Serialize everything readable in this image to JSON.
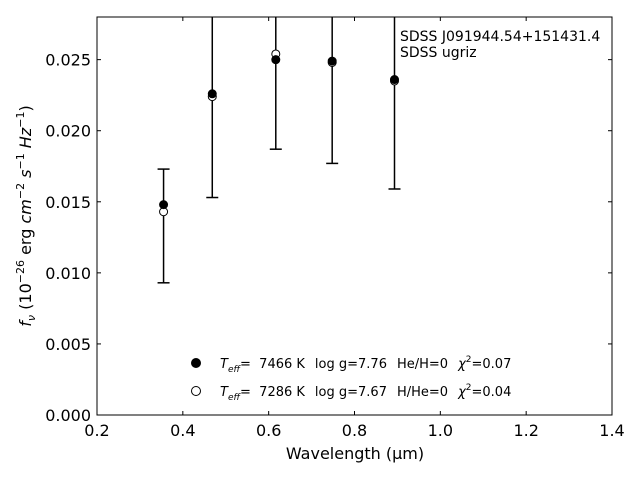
{
  "chart_data": {
    "type": "scatter",
    "xlabel": "Wavelength (μm)",
    "ylabel_parts": {
      "f": "f",
      "nu": "ν",
      "open": " (10",
      "exp1": "−26",
      "erg": " erg ",
      "cm": "cm",
      "exp2": "−2",
      "s": " s",
      "exp3": "−1",
      "hz": " Hz",
      "exp4": "−1",
      "close": ")"
    },
    "xlim": [
      0.2,
      1.4
    ],
    "ylim": [
      0.0,
      0.028
    ],
    "xticks": [
      0.2,
      0.4,
      0.6,
      0.8,
      1.0,
      1.2,
      1.4
    ],
    "xtick_labels": [
      "0.2",
      "0.4",
      "0.6",
      "0.8",
      "1.0",
      "1.2",
      "1.4"
    ],
    "yticks": [
      0.0,
      0.005,
      0.01,
      0.015,
      0.02,
      0.025
    ],
    "ytick_labels": [
      "0.000",
      "0.005",
      "0.010",
      "0.015",
      "0.020",
      "0.025"
    ],
    "annotation": [
      "SDSS J091944.54+151431.4",
      "SDSS ugriz"
    ],
    "observed": {
      "x": [
        0.3551,
        0.4686,
        0.6166,
        0.748,
        0.8932
      ],
      "y": [
        0.0148,
        0.0226,
        0.025,
        0.0249,
        0.0236
      ],
      "err_low": [
        0.0093,
        0.0153,
        0.0187,
        0.0177,
        0.0159
      ],
      "err_high": [
        0.0173,
        0.0299,
        0.0313,
        0.0321,
        0.0313
      ]
    },
    "series": [
      {
        "marker": "filled",
        "values": [
          0.0148,
          0.0226,
          0.025,
          0.0249,
          0.0236
        ],
        "label": {
          "teff": "7466 K",
          "logg": "log g=7.76",
          "comp": "He/H=0",
          "chi2": "=0.07"
        }
      },
      {
        "marker": "open",
        "values": [
          0.0143,
          0.0224,
          0.0254,
          0.0248,
          0.0235
        ],
        "label": {
          "teff": "7286 K",
          "logg": "log g=7.67",
          "comp": "H/He=0",
          "chi2": "=0.04"
        }
      }
    ],
    "legend_text": {
      "T": "T",
      "eff": "eff",
      "eq": "=  ",
      "chi": "χ",
      "sq": "2"
    }
  }
}
